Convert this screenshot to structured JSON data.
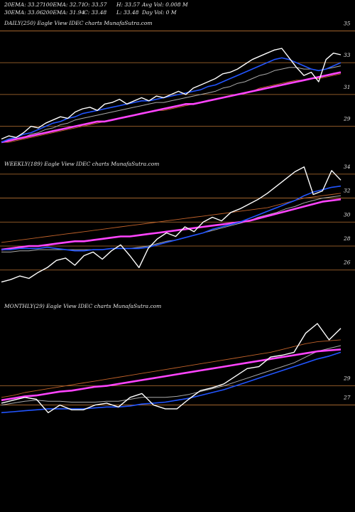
{
  "header": {
    "row1": [
      "20EMA: 33.27",
      "100EMA: 32.71",
      "O: 33.57",
      "H: 33.57",
      "Avg Vol: 0.008  M"
    ],
    "row2": [
      "30EMA: 33.06",
      "200EMA: 31.94",
      "C: 33.48",
      "L: 33.48",
      "Day Vol: 0  M"
    ]
  },
  "colors": {
    "background": "#000000",
    "price": "#ffffff",
    "ema_fast": "#2255ff",
    "ema_slow": "#ff44ff",
    "ema_mid": "#aaaaaa",
    "ema_orange": "#c0622a",
    "grid": "#b87333"
  },
  "chart_data": [
    {
      "type": "line",
      "title": "DAILY(250) Eagle  View  IDEC charts MunafaSutra.com",
      "xlabel": "",
      "ylabel": "",
      "ylim": [
        28.0,
        35.6
      ],
      "yticks": [
        29,
        31,
        33,
        35
      ],
      "grid": "horizontal",
      "series": [
        {
          "role": "price",
          "values": [
            28.2,
            28.4,
            28.3,
            28.6,
            29.0,
            28.9,
            29.2,
            29.4,
            29.6,
            29.5,
            29.9,
            30.1,
            30.2,
            30.0,
            30.4,
            30.5,
            30.7,
            30.4,
            30.6,
            30.8,
            30.6,
            30.9,
            30.8,
            31.0,
            31.2,
            31.0,
            31.4,
            31.6,
            31.8,
            32.0,
            32.3,
            32.4,
            32.6,
            32.9,
            33.2,
            33.4,
            33.6,
            33.8,
            33.9,
            33.3,
            32.7,
            32.2,
            32.4,
            31.8,
            33.2,
            33.6,
            33.5
          ]
        },
        {
          "role": "ema_fast",
          "values": [
            28.0,
            28.2,
            28.3,
            28.5,
            28.6,
            28.8,
            29.0,
            29.2,
            29.3,
            29.5,
            29.6,
            29.8,
            29.9,
            30.0,
            30.1,
            30.2,
            30.3,
            30.4,
            30.5,
            30.6,
            30.6,
            30.7,
            30.8,
            30.9,
            31.0,
            31.1,
            31.2,
            31.3,
            31.5,
            31.6,
            31.8,
            32.0,
            32.2,
            32.4,
            32.6,
            32.8,
            33.0,
            33.2,
            33.3,
            33.2,
            33.0,
            32.8,
            32.6,
            32.5,
            32.6,
            32.8,
            33.0
          ]
        },
        {
          "role": "ema_mid",
          "values": [
            28.0,
            28.1,
            28.2,
            28.3,
            28.5,
            28.6,
            28.8,
            28.9,
            29.1,
            29.2,
            29.4,
            29.5,
            29.6,
            29.7,
            29.8,
            29.9,
            30.0,
            30.1,
            30.2,
            30.3,
            30.4,
            30.5,
            30.5,
            30.6,
            30.7,
            30.8,
            30.9,
            31.0,
            31.1,
            31.2,
            31.4,
            31.5,
            31.7,
            31.8,
            32.0,
            32.2,
            32.3,
            32.5,
            32.6,
            32.7,
            32.7,
            32.6,
            32.6,
            32.5,
            32.6,
            32.7,
            32.8
          ]
        },
        {
          "role": "ema_orange",
          "values": [
            28.0,
            28.0,
            28.1,
            28.2,
            28.3,
            28.4,
            28.5,
            28.6,
            28.7,
            28.8,
            28.9,
            29.0,
            29.1,
            29.2,
            29.3,
            29.4,
            29.5,
            29.6,
            29.7,
            29.8,
            29.9,
            30.0,
            30.0,
            30.1,
            30.2,
            30.3,
            30.4,
            30.5,
            30.6,
            30.7,
            30.8,
            30.9,
            31.0,
            31.1,
            31.2,
            31.4,
            31.5,
            31.6,
            31.7,
            31.8,
            31.9,
            31.9,
            32.0,
            32.0,
            32.1,
            32.2,
            32.3
          ]
        },
        {
          "role": "ema_slow",
          "values": [
            28.0,
            28.1,
            28.2,
            28.3,
            28.4,
            28.5,
            28.6,
            28.7,
            28.8,
            28.9,
            29.0,
            29.1,
            29.2,
            29.3,
            29.3,
            29.4,
            29.5,
            29.6,
            29.7,
            29.8,
            29.9,
            30.0,
            30.1,
            30.2,
            30.3,
            30.4,
            30.4,
            30.5,
            30.6,
            30.7,
            30.8,
            30.9,
            31.0,
            31.1,
            31.2,
            31.3,
            31.4,
            31.5,
            31.6,
            31.7,
            31.8,
            31.9,
            32.0,
            32.1,
            32.2,
            32.3,
            32.4
          ]
        }
      ]
    },
    {
      "type": "line",
      "title": "WEEKLY(189) Eagle  View  IDEC charts MunafaSutra.com",
      "xlabel": "",
      "ylabel": "",
      "ylim": [
        24.5,
        35.0
      ],
      "yticks": [
        26,
        28,
        30,
        32,
        34
      ],
      "grid": "horizontal",
      "series": [
        {
          "role": "price",
          "values": [
            25.0,
            25.2,
            25.5,
            25.3,
            25.8,
            26.2,
            26.8,
            27.0,
            26.4,
            27.2,
            27.5,
            26.9,
            27.6,
            28.1,
            27.2,
            26.2,
            27.8,
            28.6,
            29.1,
            28.8,
            29.6,
            29.2,
            30.0,
            30.4,
            30.1,
            30.8,
            31.1,
            31.5,
            31.9,
            32.4,
            33.0,
            33.6,
            34.2,
            34.6,
            32.3,
            32.6,
            34.3,
            33.5
          ]
        },
        {
          "role": "ema_fast",
          "values": [
            27.7,
            27.7,
            27.8,
            27.8,
            27.8,
            27.9,
            27.8,
            27.7,
            27.6,
            27.6,
            27.7,
            27.7,
            27.8,
            27.8,
            27.8,
            27.8,
            27.9,
            28.1,
            28.3,
            28.5,
            28.7,
            28.9,
            29.1,
            29.4,
            29.6,
            29.8,
            30.0,
            30.3,
            30.6,
            30.9,
            31.2,
            31.5,
            31.8,
            32.2,
            32.5,
            32.7,
            32.9,
            33.0
          ]
        },
        {
          "role": "ema_mid",
          "values": [
            27.5,
            27.5,
            27.6,
            27.6,
            27.7,
            27.7,
            27.7,
            27.7,
            27.7,
            27.7,
            27.7,
            27.7,
            27.8,
            27.8,
            27.8,
            27.9,
            28.0,
            28.2,
            28.4,
            28.5,
            28.7,
            28.9,
            29.1,
            29.3,
            29.5,
            29.7,
            29.9,
            30.1,
            30.4,
            30.6,
            30.8,
            31.1,
            31.3,
            31.6,
            31.8,
            32.0,
            32.1,
            32.2
          ]
        },
        {
          "role": "ema_orange",
          "values": [
            28.3,
            28.4,
            28.5,
            28.6,
            28.7,
            28.8,
            28.9,
            29.0,
            29.1,
            29.2,
            29.3,
            29.4,
            29.5,
            29.6,
            29.7,
            29.8,
            29.9,
            30.0,
            30.1,
            30.2,
            30.3,
            30.4,
            30.5,
            30.6,
            30.7,
            30.8,
            30.9,
            31.0,
            31.1,
            31.2,
            31.4,
            31.6,
            31.8,
            32.0,
            32.1,
            32.2,
            32.3,
            32.4
          ]
        },
        {
          "role": "ema_slow",
          "values": [
            27.7,
            27.8,
            27.9,
            28.0,
            28.0,
            28.1,
            28.2,
            28.3,
            28.4,
            28.4,
            28.5,
            28.6,
            28.7,
            28.8,
            28.8,
            28.9,
            29.0,
            29.1,
            29.2,
            29.3,
            29.4,
            29.5,
            29.6,
            29.7,
            29.8,
            29.9,
            30.0,
            30.1,
            30.3,
            30.5,
            30.7,
            30.9,
            31.1,
            31.3,
            31.5,
            31.7,
            31.8,
            31.9
          ]
        }
      ]
    },
    {
      "type": "line",
      "title": "MONTHLY(29) Eagle  View  IDEC charts MunafaSutra.com",
      "xlabel": "",
      "ylabel": "",
      "ylim": [
        24.0,
        37.5
      ],
      "yticks": [
        27,
        29
      ],
      "grid": "horizontal",
      "series": [
        {
          "role": "price",
          "values": [
            27.2,
            27.5,
            27.8,
            27.6,
            26.2,
            27.0,
            26.5,
            26.5,
            27.0,
            27.2,
            26.8,
            27.8,
            28.2,
            27.0,
            26.6,
            26.6,
            27.6,
            28.5,
            28.8,
            29.2,
            30.0,
            30.8,
            31.0,
            32.0,
            32.2,
            32.5,
            34.5,
            35.5,
            33.8,
            35.0
          ]
        },
        {
          "role": "ema_fast",
          "values": [
            26.2,
            26.3,
            26.4,
            26.5,
            26.6,
            26.6,
            26.6,
            26.6,
            26.7,
            26.8,
            26.8,
            26.9,
            27.1,
            27.2,
            27.3,
            27.5,
            27.7,
            28.0,
            28.3,
            28.6,
            29.0,
            29.4,
            29.8,
            30.2,
            30.6,
            31.0,
            31.4,
            31.8,
            32.1,
            32.5
          ]
        },
        {
          "role": "ema_mid",
          "values": [
            27.0,
            27.2,
            27.4,
            27.5,
            27.4,
            27.4,
            27.3,
            27.3,
            27.3,
            27.4,
            27.4,
            27.6,
            27.8,
            27.8,
            27.8,
            27.9,
            28.1,
            28.4,
            28.7,
            29.0,
            29.4,
            29.8,
            30.2,
            30.6,
            31.0,
            31.4,
            32.0,
            32.6,
            32.9,
            33.2
          ]
        },
        {
          "role": "ema_orange",
          "values": [
            27.8,
            28.0,
            28.3,
            28.5,
            28.7,
            28.9,
            29.1,
            29.3,
            29.5,
            29.7,
            29.9,
            30.1,
            30.3,
            30.5,
            30.7,
            30.9,
            31.1,
            31.3,
            31.5,
            31.7,
            31.9,
            32.1,
            32.3,
            32.5,
            32.8,
            33.1,
            33.4,
            33.6,
            33.7,
            33.8
          ]
        },
        {
          "role": "ema_slow",
          "values": [
            27.5,
            27.7,
            27.9,
            28.0,
            28.2,
            28.4,
            28.5,
            28.7,
            28.9,
            29.0,
            29.2,
            29.4,
            29.6,
            29.8,
            30.0,
            30.2,
            30.4,
            30.6,
            30.8,
            31.0,
            31.2,
            31.4,
            31.6,
            31.8,
            32.0,
            32.2,
            32.4,
            32.6,
            32.7,
            32.8
          ]
        }
      ]
    }
  ]
}
